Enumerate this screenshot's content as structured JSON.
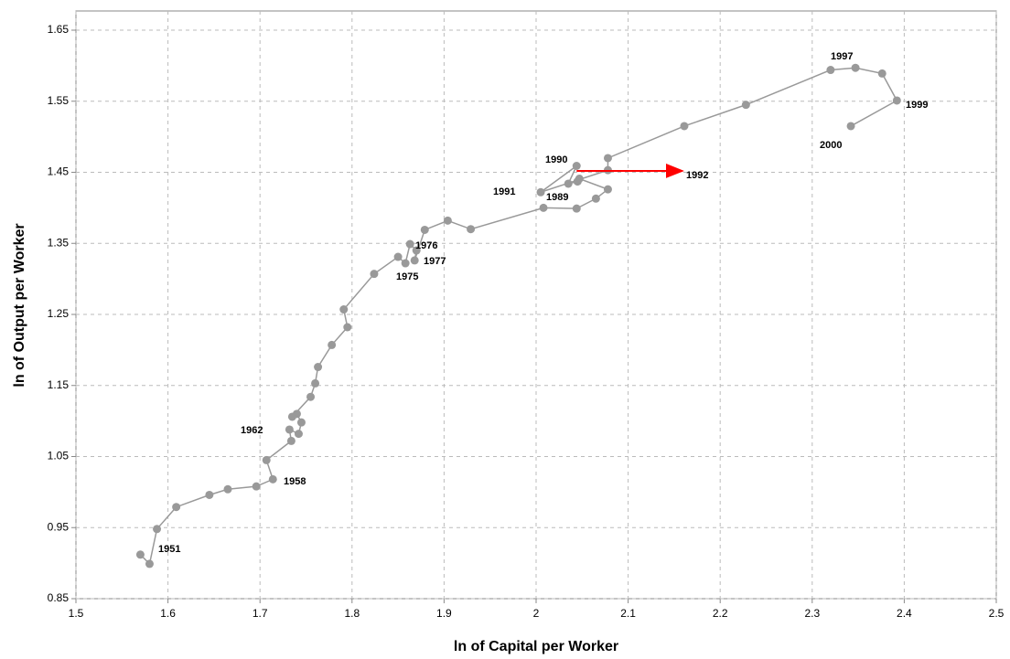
{
  "chart_data": {
    "type": "scatter-line",
    "x_label": "ln of Capital per Worker",
    "y_label": "ln of Output per Worker",
    "x": [
      1.57,
      1.58,
      1.588,
      1.609,
      1.645,
      1.665,
      1.696,
      1.714,
      1.707,
      1.734,
      1.732,
      1.742,
      1.745,
      1.74,
      1.735,
      1.755,
      1.76,
      1.763,
      1.778,
      1.795,
      1.791,
      1.824,
      1.85,
      1.858,
      1.863,
      1.87,
      1.868,
      1.879,
      1.904,
      1.929,
      2.008,
      2.044,
      2.065,
      2.078,
      2.047,
      2.045,
      2.035,
      2.044,
      2.005,
      2.078,
      2.078,
      2.161,
      2.228,
      2.32,
      2.347,
      2.376,
      2.392,
      2.342
    ],
    "y": [
      0.912,
      0.899,
      0.948,
      0.979,
      0.996,
      1.004,
      1.008,
      1.018,
      1.045,
      1.072,
      1.088,
      1.082,
      1.098,
      1.11,
      1.106,
      1.134,
      1.153,
      1.176,
      1.207,
      1.232,
      1.257,
      1.307,
      1.331,
      1.322,
      1.349,
      1.34,
      1.326,
      1.369,
      1.382,
      1.37,
      1.4,
      1.399,
      1.413,
      1.426,
      1.441,
      1.437,
      1.434,
      1.459,
      1.422,
      1.453,
      1.47,
      1.515,
      1.545,
      1.594,
      1.597,
      1.589,
      1.551,
      1.515
    ],
    "color": "#999999",
    "annotations": [
      "1951",
      "1958",
      "1962",
      "1975",
      "1976",
      "1977",
      "1989",
      "1990",
      "1991",
      "1992",
      "1997",
      "1999",
      "2000"
    ],
    "arrow": {
      "x": [
        2.044,
        2.159
      ],
      "y": [
        1.452,
        1.452
      ],
      "color": "#ff0000"
    },
    "xlim": [
      1.5,
      2.5
    ],
    "xticks": [
      1.5,
      1.6,
      1.7,
      1.8,
      1.9,
      2,
      2.1,
      2.2,
      2.3,
      2.4,
      2.5
    ],
    "ylim": [
      0.85,
      1.65
    ],
    "yticks": [
      0.85,
      0.95,
      1.05,
      1.15,
      1.25,
      1.35,
      1.45,
      1.55,
      1.65
    ],
    "grid": true
  }
}
